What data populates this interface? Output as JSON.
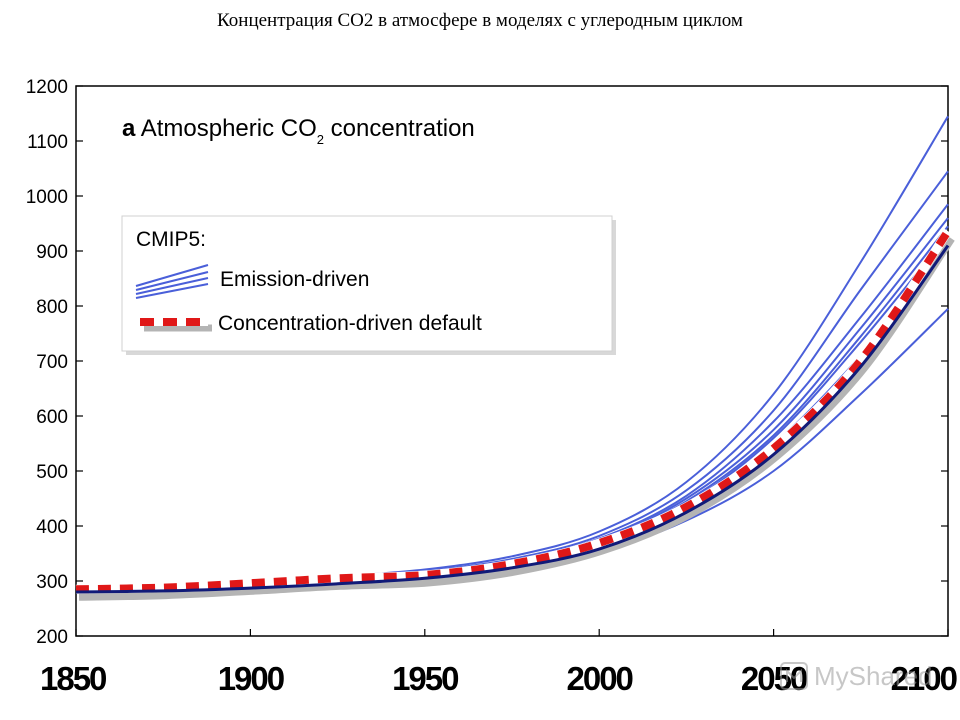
{
  "page_title": "Концентрация CO2 в атмосфере в моделях с углеродным циклом",
  "watermark": "MyShared",
  "colors": {
    "emission": "#4a5fd9",
    "concentration_red": "#e01818",
    "concentration_white": "#ffffff",
    "concentration_shadow": "#b4b4b4",
    "observed_dark": "#101a78"
  },
  "chart_data": {
    "type": "line",
    "title_panel_letter": "a",
    "title_main": "Atmospheric CO",
    "title_subscript": "2",
    "title_rest": " concentration",
    "xlim": [
      1850,
      2100
    ],
    "ylim": [
      200,
      1200
    ],
    "x_ticks": [
      1850,
      1900,
      1950,
      2000,
      2050,
      2100
    ],
    "y_ticks": [
      200,
      300,
      400,
      500,
      600,
      700,
      800,
      900,
      1000,
      1100,
      1200
    ],
    "legend": {
      "header": "CMIP5:",
      "entries": [
        "Emission-driven",
        "Concentration-driven default"
      ],
      "placement": "upper-left"
    },
    "x": [
      1850,
      1875,
      1900,
      1925,
      1950,
      1975,
      2000,
      2025,
      2050,
      2075,
      2100
    ],
    "series": [
      {
        "name": "Concentration-driven default",
        "style": "dashed",
        "values": [
          285,
          288,
          296,
          305,
          311,
          331,
          369,
          435,
          541,
          701,
          936
        ]
      },
      {
        "style": "solid-dark",
        "values": [
          280,
          282,
          287,
          295,
          305,
          324,
          358,
          425,
          530,
          690,
          910
        ]
      },
      {
        "style": "solid",
        "values": [
          285,
          289,
          297,
          308,
          321,
          345,
          390,
          480,
          640,
          880,
          1145
        ]
      },
      {
        "style": "solid",
        "values": [
          285,
          288,
          296,
          306,
          318,
          340,
          382,
          465,
          610,
          830,
          1045
        ]
      },
      {
        "style": "solid",
        "values": [
          284,
          287,
          294,
          303,
          315,
          336,
          377,
          455,
          590,
          780,
          985
        ]
      },
      {
        "style": "solid",
        "values": [
          283,
          286,
          293,
          302,
          313,
          333,
          373,
          450,
          575,
          760,
          960
        ]
      },
      {
        "style": "solid",
        "values": [
          283,
          286,
          292,
          301,
          312,
          331,
          370,
          445,
          565,
          745,
          945
        ]
      },
      {
        "style": "solid",
        "values": [
          282,
          285,
          291,
          300,
          310,
          328,
          364,
          440,
          560,
          735,
          930
        ]
      },
      {
        "style": "solid",
        "values": [
          282,
          284,
          290,
          299,
          309,
          326,
          360,
          430,
          548,
          710,
          905
        ]
      },
      {
        "style": "solid",
        "values": [
          281,
          284,
          290,
          298,
          307,
          323,
          353,
          410,
          500,
          640,
          795
        ]
      }
    ]
  }
}
